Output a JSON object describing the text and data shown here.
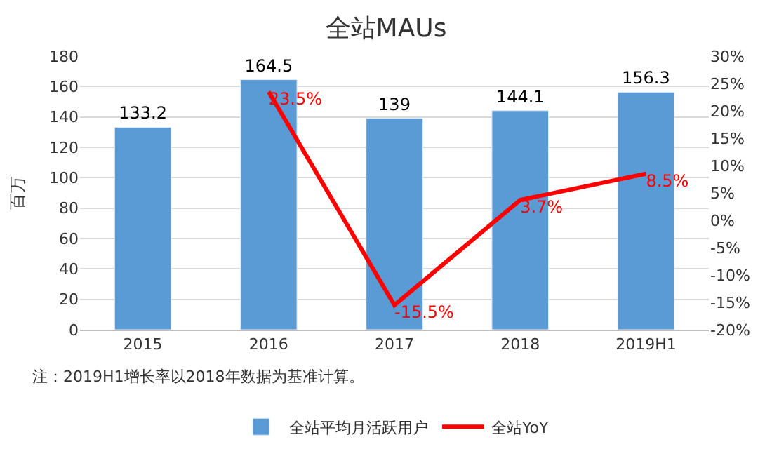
{
  "chart_data": {
    "type": "bar",
    "title": "全站MAUs",
    "ylabel": "百万",
    "categories": [
      "2015",
      "2016",
      "2017",
      "2018",
      "2019H1"
    ],
    "series": [
      {
        "name": "全站平均月活跃用户",
        "color": "#5b9bd5",
        "values": [
          133.2,
          164.5,
          139,
          144.1,
          156.3
        ],
        "data_labels": true
      },
      {
        "name": "全站YoY",
        "type": "line",
        "axis": "y2",
        "color": "#ff0000",
        "values": [
          null,
          23.5,
          -15.5,
          3.7,
          8.5
        ],
        "value_labels": [
          null,
          "23.5%",
          "-15.5%",
          "3.7%",
          "8.5%"
        ],
        "marker": "none",
        "line_style": "solid"
      }
    ],
    "ylim": [
      0,
      180
    ],
    "yticks": [
      0,
      20,
      40,
      60,
      80,
      100,
      120,
      140,
      160,
      180
    ],
    "y2lim": [
      -20,
      30
    ],
    "y2ticks": [
      {
        "value": -20,
        "label": "-20%"
      },
      {
        "value": -15,
        "label": "-15%"
      },
      {
        "value": -10,
        "label": "-10%"
      },
      {
        "value": -5,
        "label": "-5%"
      },
      {
        "value": 0,
        "label": "0%"
      },
      {
        "value": 5,
        "label": "5%"
      },
      {
        "value": 10,
        "label": "10%"
      },
      {
        "value": 15,
        "label": "15%"
      },
      {
        "value": 20,
        "label": "20%"
      },
      {
        "value": 25,
        "label": "25%"
      },
      {
        "value": 30,
        "label": "30%"
      }
    ],
    "grid": "y",
    "legend": "bottom",
    "annotations": [
      "注：2019H1增长率以2018年数据为基准计算。"
    ]
  }
}
